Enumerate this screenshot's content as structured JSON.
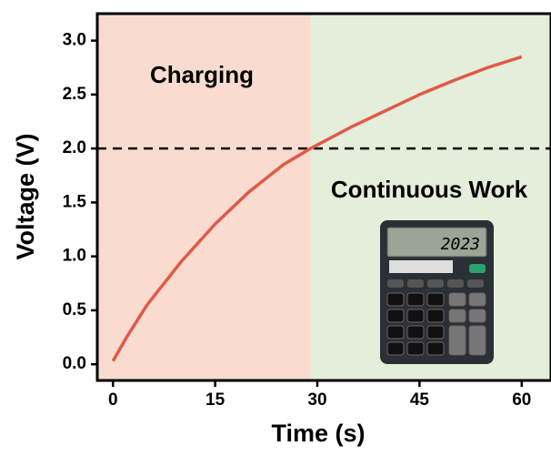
{
  "chart_data": {
    "type": "line",
    "x_label": "Time (s)",
    "y_label": "Voltage (V)",
    "x": [
      0,
      2,
      5,
      10,
      15,
      20,
      25,
      29,
      35,
      40,
      45,
      50,
      55,
      60
    ],
    "values": [
      0.03,
      0.25,
      0.55,
      0.95,
      1.3,
      1.6,
      1.85,
      2.0,
      2.2,
      2.35,
      2.5,
      2.63,
      2.75,
      2.85
    ],
    "color": "#e05a48",
    "xlim": [
      -2.3,
      64.3
    ],
    "ylim": [
      -0.15,
      3.25
    ],
    "xticks": [
      0,
      15,
      30,
      45,
      60
    ],
    "yticks": [
      {
        "value": 0,
        "label": "0.0"
      },
      {
        "value": 0.5,
        "label": "0.5"
      },
      {
        "value": 1,
        "label": "1.0"
      },
      {
        "value": 1.5,
        "label": "1.5"
      },
      {
        "value": 2,
        "label": "2.0"
      },
      {
        "value": 2.5,
        "label": "2.5"
      },
      {
        "value": 3,
        "label": "3.0"
      }
    ],
    "threshold": 2.0,
    "split_x": 29,
    "regions": [
      {
        "label": "Charging",
        "color": "#f9dccf"
      },
      {
        "label": "Continuous Work",
        "color": "#e4eedb"
      }
    ],
    "inset_display": "2023"
  }
}
